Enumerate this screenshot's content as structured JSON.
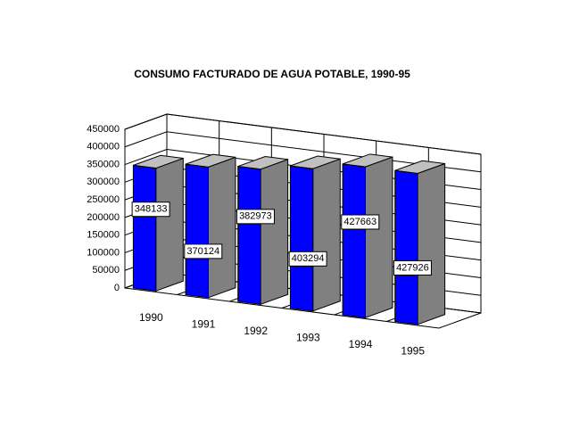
{
  "chart_data": {
    "type": "bar3d",
    "title": "CONSUMO FACTURADO DE AGUA POTABLE, 1990-95",
    "categories": [
      "1990",
      "1991",
      "1992",
      "1993",
      "1994",
      "1995"
    ],
    "values": [
      348133,
      370124,
      382973,
      403294,
      427663,
      427926
    ],
    "color": "#0000ff",
    "ylim": [
      0,
      450000
    ],
    "yticks": [
      0,
      50000,
      100000,
      150000,
      200000,
      250000,
      300000,
      350000,
      400000,
      450000
    ],
    "grid": true
  }
}
